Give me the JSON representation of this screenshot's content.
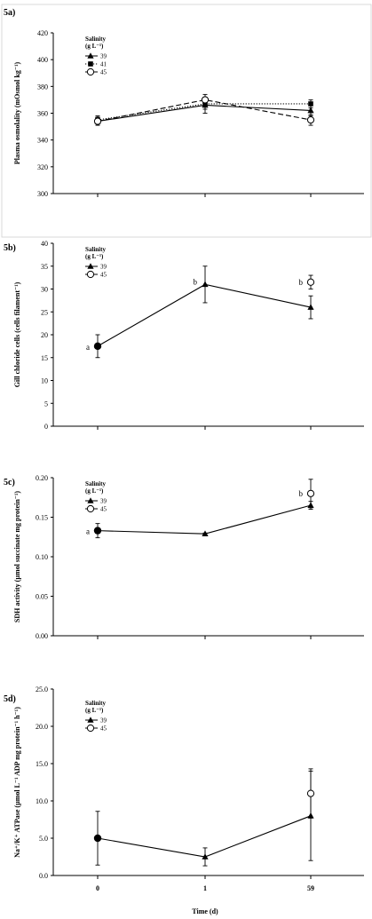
{
  "chart_data": [
    {
      "type": "line",
      "panel_label": "5a)",
      "ylabel": "Plasma osmolality (mOsmol kg⁻¹)",
      "ylim": [
        300,
        420
      ],
      "yticks": [
        "300",
        "320",
        "340",
        "360",
        "380",
        "400",
        "420"
      ],
      "categories": [
        "0",
        "1",
        "59"
      ],
      "legend": {
        "title_line1": "Salinity",
        "title_line2": "(g L⁻¹)",
        "placement": "top-left"
      },
      "series": [
        {
          "name": "39",
          "marker": "triangle",
          "line": "solid",
          "values": [
            354,
            366,
            362
          ],
          "err": [
            3,
            6,
            4
          ]
        },
        {
          "name": "41",
          "marker": "square",
          "line": "dotted",
          "values": [
            355,
            367,
            367
          ],
          "err": [
            3,
            4,
            3
          ]
        },
        {
          "name": "45",
          "marker": "circle-open",
          "line": "dashed",
          "values": [
            354,
            370,
            355
          ],
          "err": [
            3,
            4,
            4
          ]
        }
      ],
      "annotations": [],
      "border": true
    },
    {
      "type": "line",
      "panel_label": "5b)",
      "ylabel": "Gill chloride cells (cells filament⁻¹)",
      "ylim": [
        0,
        40
      ],
      "yticks": [
        "0",
        "5",
        "10",
        "15",
        "20",
        "25",
        "30",
        "35",
        "40"
      ],
      "categories": [
        "0",
        "1",
        "59"
      ],
      "legend": {
        "title_line1": "Salinity",
        "title_line2": "(g L⁻¹)",
        "placement": "top-left"
      },
      "series": [
        {
          "name": "39",
          "marker": "triangle",
          "line": "solid",
          "values": [
            17.5,
            31,
            26
          ],
          "err": [
            2.5,
            4,
            2.5
          ]
        },
        {
          "name": "45",
          "marker": "circle-open",
          "line": "none",
          "values": [
            null,
            null,
            31.5
          ],
          "err": [
            null,
            null,
            1.5
          ]
        }
      ],
      "start_point": {
        "value": 17.5
      },
      "annotations": [
        {
          "text": "a",
          "x": "0",
          "y": 17.5
        },
        {
          "text": "b",
          "x": "1",
          "y": 31
        },
        {
          "text": "b",
          "x": "59",
          "y": 31.5
        }
      ],
      "border": false
    },
    {
      "type": "line",
      "panel_label": "5c)",
      "ylabel": "SDH activity (µmol succinate mg protein⁻¹)",
      "ylim": [
        0,
        0.2
      ],
      "yticks": [
        "0.00",
        "0.05",
        "0.10",
        "0.15",
        "0.20"
      ],
      "categories": [
        "0",
        "1",
        "59"
      ],
      "legend": {
        "title_line1": "Salinity",
        "title_line2": "(g L⁻¹)",
        "placement": "top-left"
      },
      "series": [
        {
          "name": "39",
          "marker": "triangle",
          "line": "solid",
          "values": [
            0.133,
            0.129,
            0.165
          ],
          "err": [
            0.009,
            0.001,
            0.005
          ]
        },
        {
          "name": "45",
          "marker": "circle-open",
          "line": "none",
          "values": [
            null,
            null,
            0.18
          ],
          "err": [
            null,
            null,
            0.018
          ]
        }
      ],
      "start_point": {
        "value": 0.133
      },
      "annotations": [
        {
          "text": "a",
          "x": "0",
          "y": 0.133
        },
        {
          "text": "b",
          "x": "59",
          "y": 0.18
        }
      ],
      "border": false
    },
    {
      "type": "line",
      "panel_label": "5d)",
      "ylabel": "Na⁺/K⁺ ATPase (µmol L⁻¹ ADP mg protein⁻¹ h⁻¹)",
      "ylim": [
        0,
        25
      ],
      "yticks": [
        "0.0",
        "5.0",
        "10.0",
        "15.0",
        "20.0",
        "25.0"
      ],
      "categories": [
        "0",
        "1",
        "59"
      ],
      "legend": {
        "title_line1": "Salinity",
        "title_line2": "(g L⁻¹)",
        "placement": "top-left"
      },
      "series": [
        {
          "name": "39",
          "marker": "triangle",
          "line": "solid",
          "values": [
            5,
            2.5,
            8
          ],
          "err": [
            3.6,
            1.2,
            6
          ]
        },
        {
          "name": "45",
          "marker": "circle-open",
          "line": "none",
          "values": [
            null,
            null,
            11
          ],
          "err": [
            null,
            null,
            3.3
          ]
        }
      ],
      "start_point": {
        "value": 5
      },
      "annotations": [],
      "border": false,
      "xlabel": "Time (d)"
    }
  ]
}
